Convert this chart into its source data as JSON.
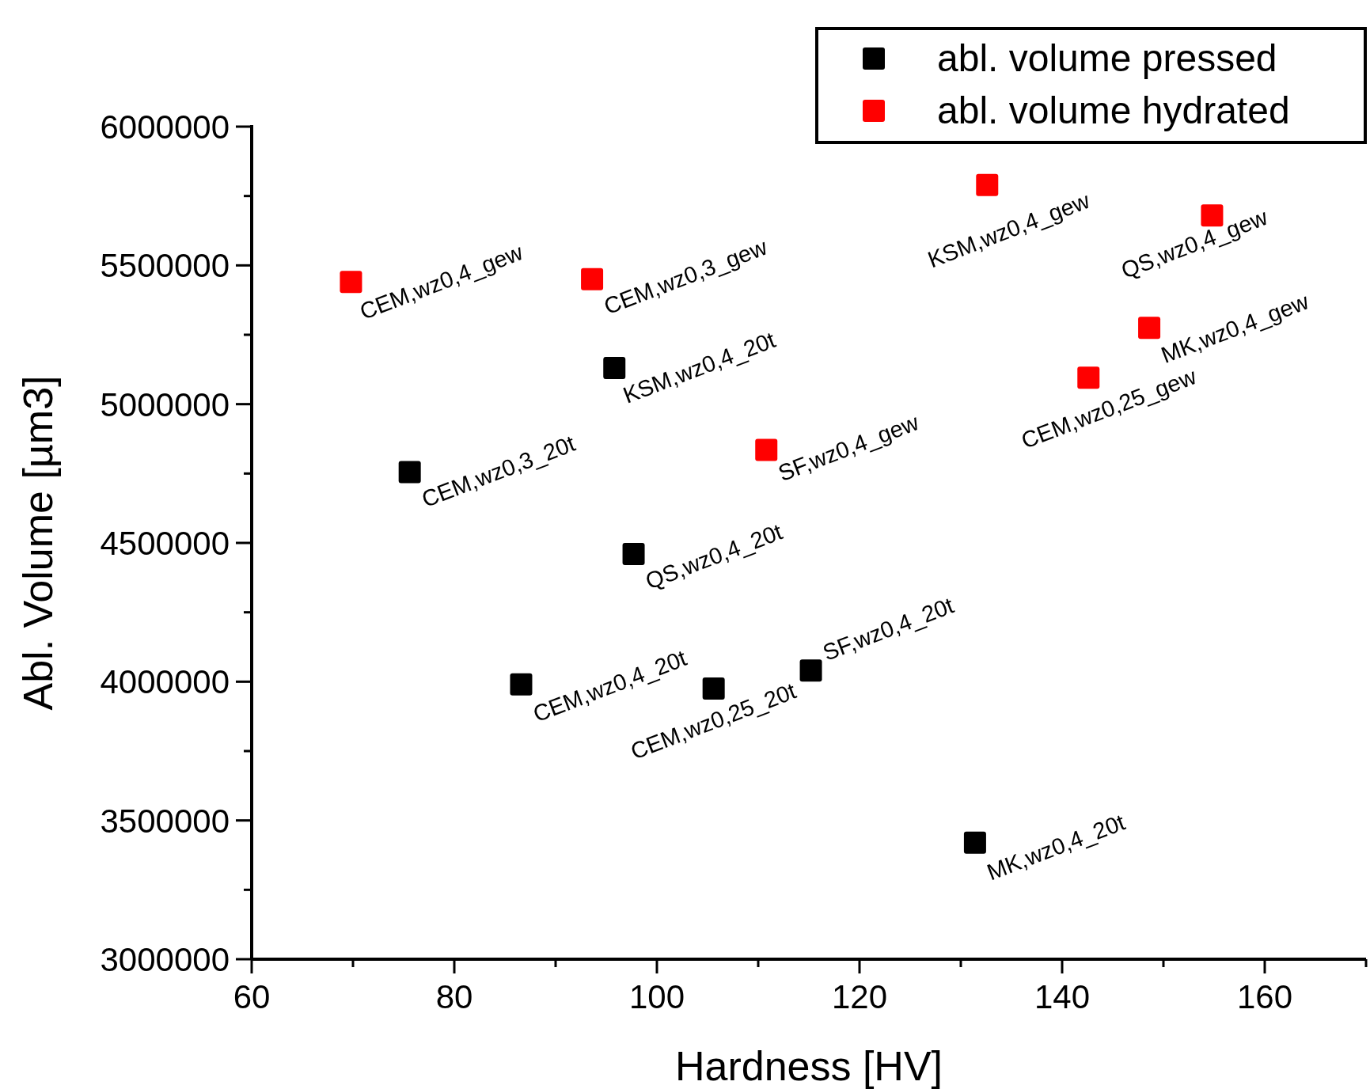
{
  "chart_data": {
    "type": "scatter",
    "xlabel": "Hardness [HV]",
    "ylabel": "Abl. Volume [µm3]",
    "xlim": [
      60,
      170
    ],
    "xticks": [
      60,
      {
        "value": 70,
        "label": null
      },
      80,
      {
        "value": 90,
        "label": null
      },
      100,
      {
        "value": 110,
        "label": null
      },
      120,
      {
        "value": 130,
        "label": null
      },
      140,
      {
        "value": 150,
        "label": null
      },
      160,
      {
        "value": 170,
        "label": null
      }
    ],
    "ylim": [
      3000000,
      6000000
    ],
    "yticks": [
      3000000,
      {
        "value": 3250000,
        "label": null
      },
      3500000,
      {
        "value": 3750000,
        "label": null
      },
      4000000,
      {
        "value": 4250000,
        "label": null
      },
      4500000,
      {
        "value": 4750000,
        "label": null
      },
      5000000,
      {
        "value": 5250000,
        "label": null
      },
      5500000,
      {
        "value": 5750000,
        "label": null
      },
      6000000
    ],
    "marker": "square",
    "legend": "top right",
    "grid": false,
    "series": [
      {
        "name": "abl. volume pressed",
        "color": "#000000",
        "x": [
          95.8,
          75.6,
          97.7,
          86.6,
          105.6,
          115.2,
          131.4
        ],
        "values": [
          5130000,
          4755000,
          4460000,
          3990000,
          3975000,
          4040000,
          3420000
        ]
      },
      {
        "name": "abl. volume hydrated",
        "color": "#ff0000",
        "x": [
          69.8,
          93.6,
          132.6,
          154.8,
          148.6,
          142.6,
          110.8
        ],
        "values": [
          5440000,
          5450000,
          5790000,
          5680000,
          5275000,
          5095000,
          4835000
        ]
      }
    ],
    "annotations": [
      {
        "text": "KSM,wz0,4_20t",
        "x": 95.8,
        "y": 5130000
      },
      {
        "text": "CEM,wz0,3_20t",
        "x": 75.6,
        "y": 4755000
      },
      {
        "text": "QS,wz0,4_20t",
        "x": 97.7,
        "y": 4460000
      },
      {
        "text": "CEM,wz0,4_20t",
        "x": 86.6,
        "y": 3990000
      },
      {
        "text": "CEM,wz0,25_20t",
        "x": 105.6,
        "y": 3975000
      },
      {
        "text": "SF,wz0,4_20t",
        "x": 115.2,
        "y": 4040000
      },
      {
        "text": "MK,wz0,4_20t",
        "x": 131.4,
        "y": 3420000
      },
      {
        "text": "CEM,wz0,4_gew",
        "x": 69.8,
        "y": 5440000
      },
      {
        "text": "CEM,wz0,3_gew",
        "x": 93.6,
        "y": 5450000
      },
      {
        "text": "KSM,wz0,4_gew",
        "x": 132.6,
        "y": 5790000
      },
      {
        "text": "QS,wz0,4_gew",
        "x": 154.8,
        "y": 5680000
      },
      {
        "text": "MK,wz0,4_gew",
        "x": 148.6,
        "y": 5275000
      },
      {
        "text": "CEM,wz0,25_gew",
        "x": 142.6,
        "y": 5095000
      },
      {
        "text": "SF,wz0,4_gew",
        "x": 110.8,
        "y": 4835000
      }
    ]
  }
}
